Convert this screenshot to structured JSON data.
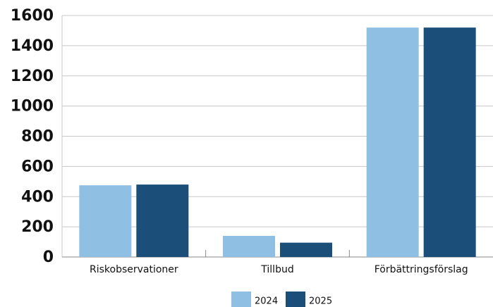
{
  "chart_data": {
    "type": "bar",
    "categories": [
      "Riskobservationer",
      "Tillbud",
      "Förbättringsförslag"
    ],
    "series": [
      {
        "name": "2024",
        "color": "#8fc0e3",
        "values": [
          475,
          140,
          1520
        ]
      },
      {
        "name": "2025",
        "color": "#1b4f7a",
        "values": [
          480,
          95,
          1520
        ]
      }
    ],
    "ylim": [
      0,
      1600
    ],
    "yticks": [
      0,
      200,
      400,
      600,
      800,
      1000,
      1200,
      1400,
      1600
    ],
    "grid": true,
    "legend": "bottom"
  }
}
